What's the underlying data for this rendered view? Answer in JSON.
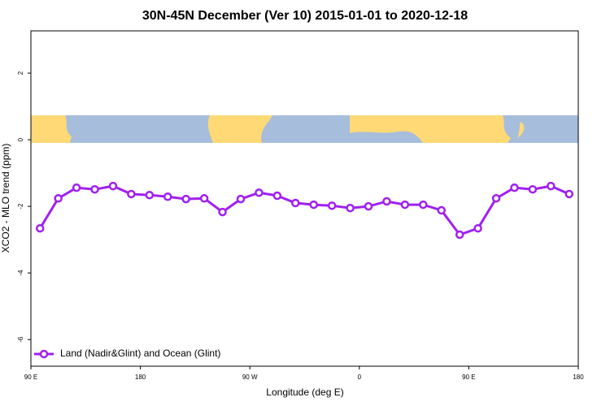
{
  "chart_data": {
    "type": "line",
    "title": "30N-45N December (Ver 10)   2015-01-01 to 2020-12-18",
    "xlabel": "Longitude (deg E)",
    "ylabel": "XCO2 - MLO trend (ppm)",
    "xlim": [
      90,
      540
    ],
    "xticks": [
      {
        "value": 90,
        "label": "90 E"
      },
      180,
      {
        "value": 270,
        "label": "90 W"
      },
      {
        "value": 360,
        "label": "0"
      },
      {
        "value": 450,
        "label": "90 E"
      },
      {
        "value": 540,
        "label": "180"
      }
    ],
    "ylim": [
      -6.8,
      3.27
    ],
    "yticks": [
      2,
      0,
      -2,
      -4,
      -6
    ],
    "legend": "bottom-left",
    "x": [
      97.5,
      112.5,
      127.5,
      142.5,
      157.5,
      172.5,
      187.5,
      202.5,
      217.5,
      232.5,
      247.5,
      262.5,
      277.5,
      292.5,
      307.5,
      322.5,
      337.5,
      352.5,
      367.5,
      382.5,
      397.5,
      412.5,
      427.5,
      442.5,
      457.5,
      472.5,
      487.5,
      502.5,
      517.5,
      532.5
    ],
    "series": [
      {
        "name": "Land (Nadir&Glint) and Ocean (Glint)",
        "color": "#a020f0",
        "values": [
          -2.66,
          -1.76,
          -1.44,
          -1.49,
          -1.39,
          -1.63,
          -1.66,
          -1.71,
          -1.78,
          -1.76,
          -2.17,
          -1.78,
          -1.59,
          -1.68,
          -1.9,
          -1.95,
          -1.98,
          -2.05,
          -2.0,
          -1.85,
          -1.95,
          -1.95,
          -2.12,
          -2.85,
          -2.66,
          -1.76,
          -1.44,
          -1.49,
          -1.39,
          -1.63
        ]
      }
    ]
  }
}
